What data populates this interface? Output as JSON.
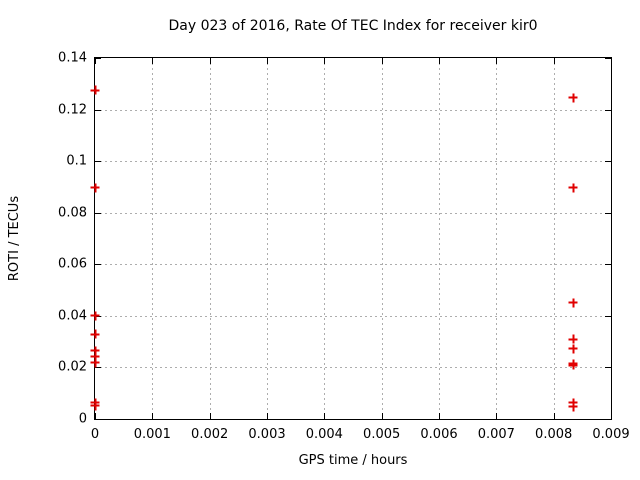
{
  "window": {
    "background_color": "#ffffff",
    "text_color": "#000000"
  },
  "chart_data": {
    "type": "scatter",
    "title": "Day 023 of 2016, Rate Of TEC Index for receiver kir0",
    "xlabel": "GPS time / hours",
    "ylabel": "ROTI / TECUs",
    "xlim": [
      0,
      0.009
    ],
    "ylim": [
      0,
      0.14
    ],
    "xticks": [
      0,
      0.001,
      0.002,
      0.003,
      0.004,
      0.005,
      0.006,
      0.007,
      0.008,
      0.009
    ],
    "xtick_labels": [
      "0",
      "0.001",
      "0.002",
      "0.003",
      "0.004",
      "0.005",
      "0.006",
      "0.007",
      "0.008",
      "0.009"
    ],
    "yticks": [
      0,
      0.02,
      0.04,
      0.06,
      0.08,
      0.1,
      0.12,
      0.14
    ],
    "ytick_labels": [
      "0",
      "0.02",
      "0.04",
      "0.06",
      "0.08",
      "0.1",
      "0.12",
      "0.14"
    ],
    "grid": true,
    "grid_style": "dotted",
    "grid_color": "#adadad",
    "border_color": "#000000",
    "legend_position": "none",
    "marker": "plus",
    "marker_color": "#e00000",
    "points": [
      {
        "x": 0,
        "y": 0.1275
      },
      {
        "x": 0,
        "y": 0.0897
      },
      {
        "x": 0,
        "y": 0.0401
      },
      {
        "x": 0,
        "y": 0.0328
      },
      {
        "x": 0,
        "y": 0.0264
      },
      {
        "x": 0,
        "y": 0.0243
      },
      {
        "x": 0,
        "y": 0.0218
      },
      {
        "x": 0,
        "y": 0.0063
      },
      {
        "x": 0,
        "y": 0.0052
      },
      {
        "x": 0.00834,
        "y": 0.1246
      },
      {
        "x": 0.00834,
        "y": 0.0897
      },
      {
        "x": 0.00834,
        "y": 0.0451
      },
      {
        "x": 0.00834,
        "y": 0.0309
      },
      {
        "x": 0.00834,
        "y": 0.0273
      },
      {
        "x": 0.00834,
        "y": 0.0215
      },
      {
        "x": 0.00834,
        "y": 0.0208
      },
      {
        "x": 0.00834,
        "y": 0.0063
      },
      {
        "x": 0.00834,
        "y": 0.0048
      }
    ]
  }
}
